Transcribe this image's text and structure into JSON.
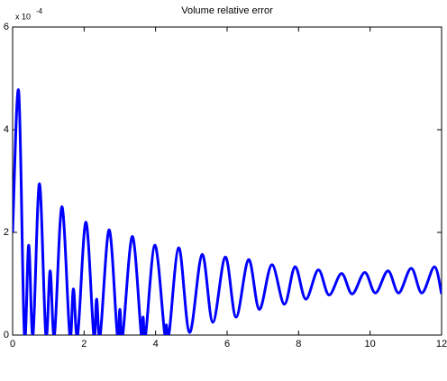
{
  "chart_data": {
    "type": "line",
    "title": "Volume relative error",
    "axis_multiplier": {
      "base": "x 10",
      "exponent": "-4"
    },
    "x": [
      0,
      0.17,
      0.33,
      0.45,
      0.57,
      0.75,
      0.93,
      1.05,
      1.17,
      1.38,
      1.6,
      1.7,
      1.82,
      2.05,
      2.27,
      2.35,
      2.45,
      2.7,
      2.93,
      3.0,
      3.08,
      3.35,
      3.6,
      3.65,
      3.72,
      3.98,
      4.25,
      4.3,
      4.38,
      4.65,
      4.95,
      5.3,
      5.6,
      5.95,
      6.25,
      6.6,
      6.9,
      7.25,
      7.6,
      7.9,
      8.2,
      8.55,
      8.85,
      9.2,
      9.5,
      9.85,
      10.15,
      10.5,
      10.8,
      11.15,
      11.45,
      11.8,
      12
    ],
    "series": [
      {
        "name": "Volume relative error",
        "color": "#0000ff",
        "values": [
          2.0,
          4.75,
          0,
          1.75,
          0,
          2.95,
          0,
          1.25,
          0,
          2.5,
          0,
          0.9,
          0,
          2.2,
          0,
          0.7,
          0,
          2.05,
          0,
          0.5,
          0,
          1.92,
          0,
          0.35,
          0,
          1.75,
          0.05,
          0.2,
          0.05,
          1.7,
          0.05,
          1.57,
          0.25,
          1.52,
          0.35,
          1.47,
          0.5,
          1.37,
          0.6,
          1.33,
          0.7,
          1.27,
          0.78,
          1.2,
          0.8,
          1.22,
          0.82,
          1.25,
          0.82,
          1.3,
          0.82,
          1.33,
          0.8
        ]
      }
    ],
    "xlim": [
      0,
      12
    ],
    "ylim": [
      0,
      6
    ],
    "xticks": [
      0,
      2,
      4,
      6,
      8,
      10,
      12
    ],
    "yticks": [
      0,
      2,
      4,
      6
    ],
    "grid": false
  }
}
